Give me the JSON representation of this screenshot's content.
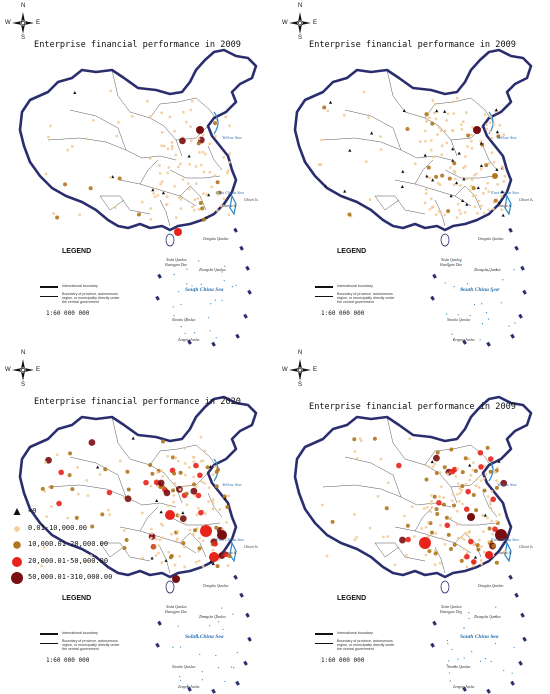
{
  "panels": [
    {
      "id": "top-left",
      "title": "Enterprise financial performance in 2009"
    },
    {
      "id": "top-right",
      "title": "Enterprise financial performance in 2009"
    },
    {
      "id": "bottom-left",
      "title": "Enterprise financial performance in 2020"
    },
    {
      "id": "bottom-right",
      "title": "Enterprise financial performance in 2009"
    }
  ],
  "compass": {
    "n": "N",
    "s": "S",
    "e": "E",
    "w": "W"
  },
  "map_legend": {
    "title": "LEGEND",
    "boundary_label": "International boundary",
    "provincial_label": "Boundary of province, autonomous region, or municipality directly under the central government",
    "scale": "1:60 000 000"
  },
  "seas": {
    "yellow": "Yellow Sea",
    "east_china": "East China Sea",
    "south_china": "South China Sea"
  },
  "places": {
    "diaoyu": "Diaoyu Is.",
    "chiwei": "Chiwei Is.",
    "dongsha": "Dongsha Qundao",
    "xisha": "Xisha Qundao",
    "zhongsha": "Zhongsha Qundao",
    "huangyan": "Huangyan Dao",
    "nansha": "Nansha Qundao",
    "zengmu": "Zengmu Ansha"
  },
  "value_legend": {
    "categories": [
      {
        "label": "<0",
        "symbol": "triangle",
        "color": "#111111"
      },
      {
        "label": "0.01-10,000.00",
        "symbol": "circle",
        "color": "#f2cc99"
      },
      {
        "label": "10,000.01-20,000.00",
        "symbol": "circle",
        "color": "#b0761c"
      },
      {
        "label": "20,000.01-50,000.00",
        "symbol": "circle",
        "color": "#e8231c"
      },
      {
        "label": "50,000.01-310,000.00",
        "symbol": "circle",
        "color": "#7a0d10"
      }
    ]
  },
  "colors": {
    "border": "#2b2e6e",
    "province_line": "#555555",
    "sea_text": "#2a6fb0",
    "water": "#2a88c8"
  }
}
